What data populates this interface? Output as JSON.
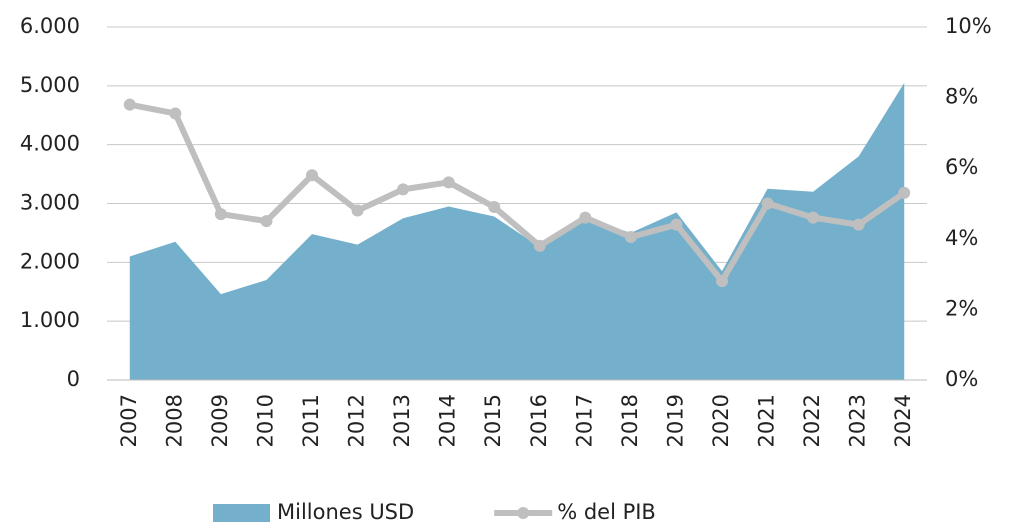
{
  "chart_data": {
    "type": "area-line",
    "categories": [
      "2007",
      "2008",
      "2009",
      "2010",
      "2011",
      "2012",
      "2013",
      "2014",
      "2015",
      "2016",
      "2017",
      "2018",
      "2019",
      "2020",
      "2021",
      "2022",
      "2023",
      "2024"
    ],
    "series": [
      {
        "name": "Millones USD",
        "type": "area",
        "color": "#74b0cc",
        "axis": "y",
        "values": [
          2100,
          2350,
          1460,
          1700,
          2480,
          2300,
          2750,
          2950,
          2780,
          2260,
          2750,
          2500,
          2850,
          1850,
          3250,
          3200,
          3800,
          5050
        ]
      },
      {
        "name": "% del PIB",
        "type": "line",
        "color": "#bfbfbf",
        "axis": "y2",
        "values": [
          7.8,
          7.55,
          4.7,
          4.5,
          5.8,
          4.8,
          5.4,
          5.6,
          4.9,
          3.8,
          4.6,
          4.05,
          4.4,
          2.8,
          5.0,
          4.6,
          4.4,
          5.3
        ]
      }
    ],
    "ylim": [
      0,
      6000
    ],
    "yticks": [
      0,
      {
        "value": 1000,
        "label": "1.000"
      },
      {
        "value": 2000,
        "label": "2.000"
      },
      {
        "value": 3000,
        "label": "3.000"
      },
      {
        "value": 4000,
        "label": "4.000"
      },
      {
        "value": 5000,
        "label": "5.000"
      },
      {
        "value": 6000,
        "label": "6.000"
      }
    ],
    "y2lim": [
      0,
      10
    ],
    "y2ticks": [
      {
        "value": 0,
        "label": "0%"
      },
      {
        "value": 2,
        "label": "2%"
      },
      {
        "value": 4,
        "label": "4%"
      },
      {
        "value": 6,
        "label": "6%"
      },
      {
        "value": 8,
        "label": "8%"
      },
      {
        "value": 10,
        "label": "10%"
      }
    ],
    "grid": true,
    "legend": "bottom"
  }
}
